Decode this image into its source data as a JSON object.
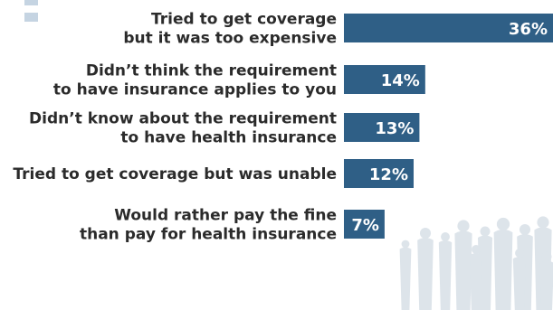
{
  "chart_data": {
    "type": "bar",
    "orientation": "horizontal",
    "categories": [
      [
        "Tried to get coverage",
        "but it was too expensive"
      ],
      [
        "Didn’t think the requirement",
        "to have insurance applies to you"
      ],
      [
        "Didn’t know about the requirement",
        "to have health insurance"
      ],
      [
        "Tried to get coverage but was unable"
      ],
      [
        "Would rather pay the fine",
        "than pay for health insurance"
      ]
    ],
    "values": [
      36,
      14,
      13,
      12,
      7
    ],
    "value_labels": [
      "36%",
      "14%",
      "13%",
      "12%",
      "7%"
    ],
    "xlim": [
      0,
      36
    ],
    "grid": false,
    "legend_placement": "top-left",
    "colors": {
      "bar": "#2f5f86",
      "bar_label": "#ffffff",
      "category_text": "#2b2b2b",
      "legend_swatch": "#c5d4e2",
      "background_figures": "#9fb3c6"
    }
  }
}
